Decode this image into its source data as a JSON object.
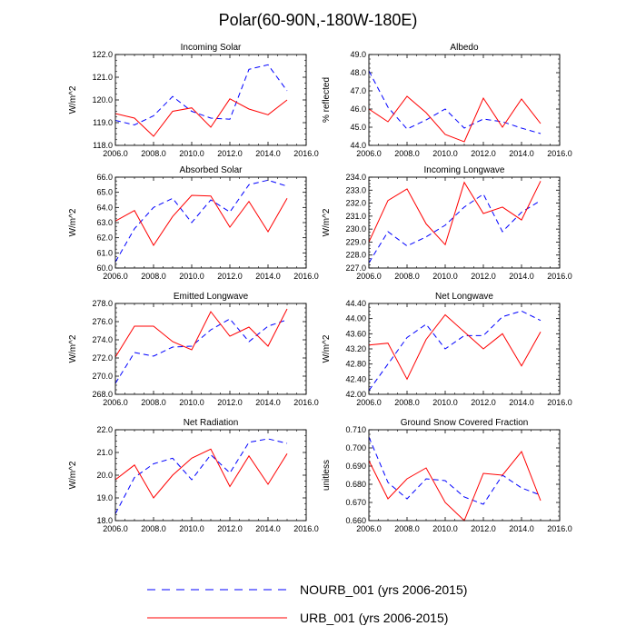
{
  "figure_title": "Polar(60-90N,-180W-180E)",
  "legend": [
    {
      "name": "NOURB_001 (yrs 2006-2015)",
      "color": "#0000ff",
      "dash": "dashed"
    },
    {
      "name": "URB_001 (yrs 2006-2015)",
      "color": "#ff0000",
      "dash": "solid"
    }
  ],
  "chart_data": [
    {
      "type": "line",
      "title": "Incoming Solar",
      "ylabel": "W/m^2",
      "xlim": [
        2006,
        2016
      ],
      "xticks": [
        "2006.0",
        "2008.0",
        "2010.0",
        "2012.0",
        "2014.0",
        "2016.0"
      ],
      "ylim": [
        118,
        122
      ],
      "yticks": [
        "118.0",
        "119.0",
        "120.0",
        "121.0",
        "122.0"
      ],
      "x": [
        2006,
        2007,
        2008,
        2009,
        2010,
        2011,
        2012,
        2013,
        2014,
        2015
      ],
      "series": [
        {
          "name": "NOURB_001",
          "values": [
            119.1,
            118.9,
            119.3,
            120.15,
            119.5,
            119.2,
            119.15,
            121.35,
            121.55,
            120.4
          ]
        },
        {
          "name": "URB_001",
          "values": [
            119.4,
            119.2,
            118.4,
            119.5,
            119.65,
            118.8,
            120.05,
            119.6,
            119.35,
            120.0
          ]
        }
      ]
    },
    {
      "type": "line",
      "title": "Albedo",
      "ylabel": "% reflected",
      "xlim": [
        2006,
        2016
      ],
      "xticks": [
        "2006.0",
        "2008.0",
        "2010.0",
        "2012.0",
        "2014.0",
        "2016.0"
      ],
      "ylim": [
        44,
        49
      ],
      "yticks": [
        "44.0",
        "45.0",
        "46.0",
        "47.0",
        "48.0",
        "49.0"
      ],
      "x": [
        2006,
        2007,
        2008,
        2009,
        2010,
        2011,
        2012,
        2013,
        2014,
        2015
      ],
      "series": [
        {
          "name": "NOURB_001",
          "values": [
            48.1,
            46.1,
            44.9,
            45.4,
            46.0,
            44.95,
            45.45,
            45.3,
            44.95,
            44.65
          ]
        },
        {
          "name": "URB_001",
          "values": [
            46.0,
            45.3,
            46.7,
            45.8,
            44.6,
            44.2,
            46.6,
            45.0,
            46.55,
            45.2
          ]
        }
      ]
    },
    {
      "type": "line",
      "title": "Absorbed Solar",
      "ylabel": "W/m^2",
      "xlim": [
        2006,
        2016
      ],
      "xticks": [
        "2006.0",
        "2008.0",
        "2010.0",
        "2012.0",
        "2014.0",
        "2016.0"
      ],
      "ylim": [
        60,
        66
      ],
      "yticks": [
        "60.0",
        "61.0",
        "62.0",
        "63.0",
        "64.0",
        "65.0",
        "66.0"
      ],
      "x": [
        2006,
        2007,
        2008,
        2009,
        2010,
        2011,
        2012,
        2013,
        2014,
        2015
      ],
      "series": [
        {
          "name": "NOURB_001",
          "values": [
            60.4,
            62.6,
            64.0,
            64.6,
            63.0,
            64.5,
            63.7,
            65.5,
            65.8,
            65.4
          ]
        },
        {
          "name": "URB_001",
          "values": [
            63.1,
            63.8,
            61.5,
            63.4,
            64.8,
            64.75,
            62.7,
            64.4,
            62.4,
            64.6
          ]
        }
      ]
    },
    {
      "type": "line",
      "title": "Incoming Longwave",
      "ylabel": "W/m^2",
      "xlim": [
        2006,
        2016
      ],
      "xticks": [
        "2006.0",
        "2008.0",
        "2010.0",
        "2012.0",
        "2014.0",
        "2016.0"
      ],
      "ylim": [
        227,
        234
      ],
      "yticks": [
        "227.0",
        "228.0",
        "229.0",
        "230.0",
        "231.0",
        "232.0",
        "233.0",
        "234.0"
      ],
      "x": [
        2006,
        2007,
        2008,
        2009,
        2010,
        2011,
        2012,
        2013,
        2014,
        2015
      ],
      "series": [
        {
          "name": "NOURB_001",
          "values": [
            227.4,
            229.8,
            228.7,
            229.4,
            230.3,
            231.7,
            232.7,
            229.8,
            231.3,
            232.2
          ]
        },
        {
          "name": "URB_001",
          "values": [
            229.0,
            232.2,
            233.1,
            230.4,
            228.8,
            233.6,
            231.2,
            231.7,
            230.7,
            233.7
          ]
        }
      ]
    },
    {
      "type": "line",
      "title": "Emitted Longwave",
      "ylabel": "W/m^2",
      "xlim": [
        2006,
        2016
      ],
      "xticks": [
        "2006.0",
        "2008.0",
        "2010.0",
        "2012.0",
        "2014.0",
        "2016.0"
      ],
      "ylim": [
        268,
        278
      ],
      "yticks": [
        "268.0",
        "270.0",
        "272.0",
        "274.0",
        "276.0",
        "278.0"
      ],
      "x": [
        2006,
        2007,
        2008,
        2009,
        2010,
        2011,
        2012,
        2013,
        2014,
        2015
      ],
      "series": [
        {
          "name": "NOURB_001",
          "values": [
            269.2,
            272.6,
            272.2,
            273.2,
            273.3,
            275.1,
            276.3,
            273.8,
            275.5,
            276.2
          ]
        },
        {
          "name": "URB_001",
          "values": [
            272.1,
            275.5,
            275.5,
            273.8,
            272.9,
            277.1,
            274.4,
            275.4,
            273.3,
            277.4
          ]
        }
      ]
    },
    {
      "type": "line",
      "title": "Net Longwave",
      "ylabel": "W/m^2",
      "xlim": [
        2006,
        2016
      ],
      "xticks": [
        "2006.0",
        "2008.0",
        "2010.0",
        "2012.0",
        "2014.0",
        "2016.0"
      ],
      "ylim": [
        42.0,
        44.4
      ],
      "yticks": [
        "42.00",
        "42.40",
        "42.80",
        "43.20",
        "43.60",
        "44.00",
        "44.40"
      ],
      "x": [
        2006,
        2007,
        2008,
        2009,
        2010,
        2011,
        2012,
        2013,
        2014,
        2015
      ],
      "series": [
        {
          "name": "NOURB_001",
          "values": [
            42.1,
            42.8,
            43.5,
            43.85,
            43.2,
            43.55,
            43.55,
            44.05,
            44.2,
            43.95
          ]
        },
        {
          "name": "URB_001",
          "values": [
            43.3,
            43.35,
            42.4,
            43.45,
            44.1,
            43.65,
            43.2,
            43.6,
            42.75,
            43.65
          ]
        }
      ]
    },
    {
      "type": "line",
      "title": "Net Radiation",
      "ylabel": "W/m^2",
      "xlim": [
        2006,
        2016
      ],
      "xticks": [
        "2006.0",
        "2008.0",
        "2010.0",
        "2012.0",
        "2014.0",
        "2016.0"
      ],
      "ylim": [
        18,
        22
      ],
      "yticks": [
        "18.0",
        "19.0",
        "20.0",
        "21.0",
        "22.0"
      ],
      "x": [
        2006,
        2007,
        2008,
        2009,
        2010,
        2011,
        2012,
        2013,
        2014,
        2015
      ],
      "series": [
        {
          "name": "NOURB_001",
          "values": [
            18.3,
            19.9,
            20.5,
            20.75,
            19.8,
            20.9,
            20.1,
            21.45,
            21.6,
            21.4
          ]
        },
        {
          "name": "URB_001",
          "values": [
            19.8,
            20.45,
            19.0,
            20.0,
            20.75,
            21.15,
            19.5,
            20.85,
            19.6,
            20.95
          ]
        }
      ]
    },
    {
      "type": "line",
      "title": "Ground Snow Covered Fraction",
      "ylabel": "unitless",
      "xlim": [
        2006,
        2016
      ],
      "xticks": [
        "2006.0",
        "2008.0",
        "2010.0",
        "2012.0",
        "2014.0",
        "2016.0"
      ],
      "ylim": [
        0.66,
        0.71
      ],
      "yticks": [
        "0.660",
        "0.670",
        "0.680",
        "0.690",
        "0.700",
        "0.710"
      ],
      "x": [
        2006,
        2007,
        2008,
        2009,
        2010,
        2011,
        2012,
        2013,
        2014,
        2015
      ],
      "series": [
        {
          "name": "NOURB_001",
          "values": [
            0.706,
            0.681,
            0.672,
            0.683,
            0.682,
            0.673,
            0.669,
            0.685,
            0.678,
            0.674
          ]
        },
        {
          "name": "URB_001",
          "values": [
            0.693,
            0.672,
            0.683,
            0.689,
            0.67,
            0.66,
            0.686,
            0.685,
            0.698,
            0.671
          ]
        }
      ]
    }
  ]
}
